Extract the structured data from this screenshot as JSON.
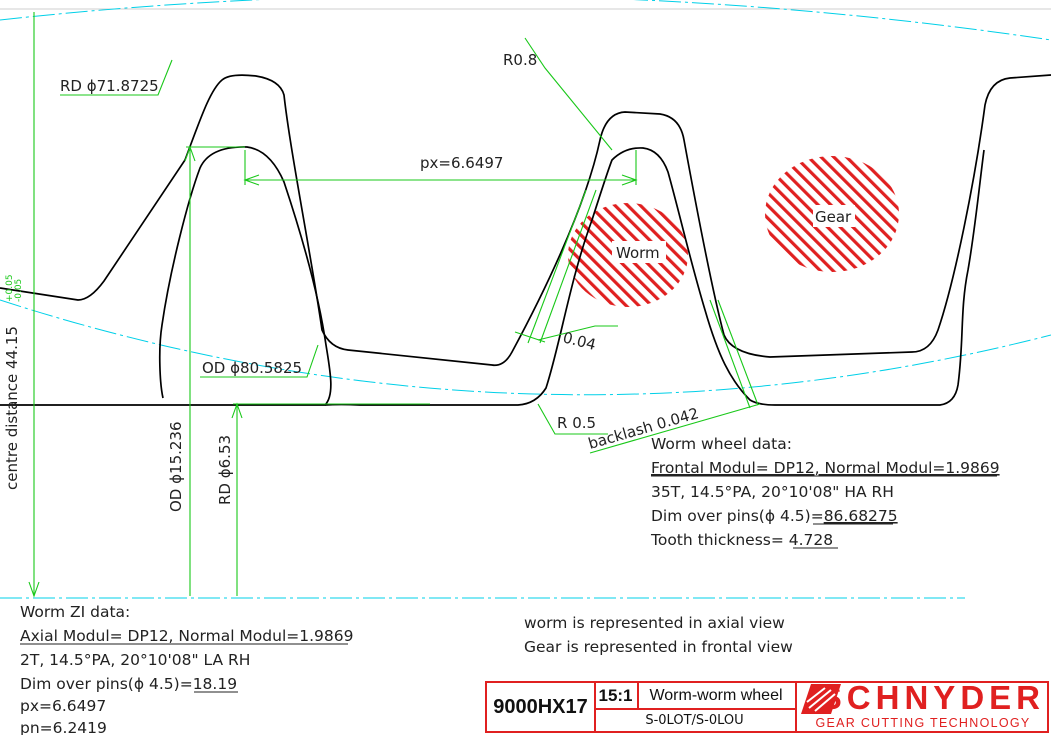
{
  "dimensions": {
    "rd_top": "RD ϕ71.8725",
    "tip_radius": "R0.8",
    "px_axial": "px=6.6497",
    "od_gear": "OD ϕ80.5825",
    "centre_distance": "centre distance 44.15",
    "tol_upper": "+0.05",
    "tol_lower": "-0.05",
    "od_worm": "OD ϕ15.236",
    "rd_worm": "RD ϕ6.53",
    "clearance": "0.04",
    "root_radius": "R 0.5",
    "backlash": "backlash  0.042"
  },
  "hatch_labels": {
    "worm": "Worm",
    "gear": "Gear"
  },
  "wheel_data": {
    "title": "Worm wheel data:",
    "modul_line": "Frontal Modul= DP12, Normal Modul=1.9869",
    "teeth_line": "35T, 14.5°PA, 20°10'08\" HA RH",
    "pins_label": "Dim over pins(ϕ 4.5)=",
    "pins_value": "86.68275",
    "thickness_label": "Tooth thickness= ",
    "thickness_value": "4.728"
  },
  "worm_data": {
    "title": "Worm ZI data:",
    "modul_line": "Axial Modul= DP12, Normal Modul=1.9869",
    "teeth_line": "2T, 14.5°PA, 20°10'08\" LA RH",
    "pins_label": "Dim over pins(ϕ 4.5)=",
    "pins_value": "18.19",
    "px_line": "px=6.6497",
    "pn_line": "pn=6.2419"
  },
  "view_notes": {
    "line1": "worm is represented in axial view",
    "line2": "Gear is represented in frontal view"
  },
  "title_block": {
    "drawing_no": "9000HX17",
    "scale": "15:1",
    "title": "Worm-worm wheel",
    "part_no": "S-0LOT/S-0LOU",
    "brand": "SCHNYDER",
    "tagline": "GEAR CUTTING TECHNOLOGY"
  },
  "colors": {
    "profile": "#000000",
    "dimension": "#19c819",
    "centerline": "#00d0e8",
    "hatch": "#e02020",
    "brand": "#e02020"
  }
}
